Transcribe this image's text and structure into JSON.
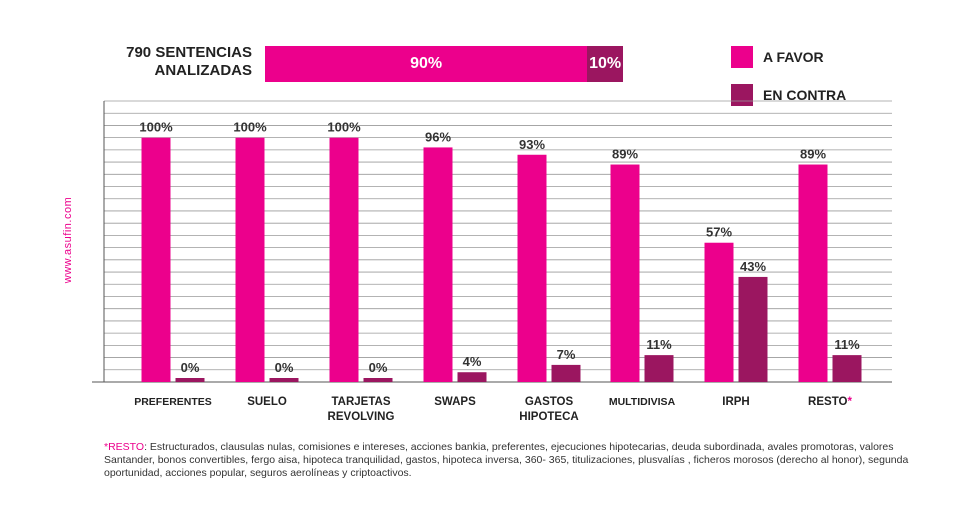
{
  "header": {
    "title_line1": "790 SENTENCIAS",
    "title_line2": "ANALIZADAS",
    "favor_pct": 90,
    "contra_pct": 10,
    "favor_label": "90%",
    "contra_label": "10%"
  },
  "legend": [
    {
      "label": "A FAVOR",
      "color": "#ec008c"
    },
    {
      "label": "EN CONTRA",
      "color": "#9b1660"
    }
  ],
  "watermark": "www.asufin.com",
  "footnote": {
    "mark": "*RESTO",
    "text": ": Estructurados, clausulas nulas, comisiones e intereses, acciones bankia, preferentes, ejecuciones hipotecarias, deuda subordinada, avales promotoras, valores Santander, bonos convertibles, fergo aisa, hipoteca tranquilidad, gastos, hipoteca inversa, 360- 365, titulizaciones, plusvalías , ficheros morosos (derecho al honor), segunda oportunidad, acciones popular, seguros aerolíneas y criptoactivos."
  },
  "chart_data": {
    "type": "bar",
    "title": "",
    "xlabel": "",
    "ylabel": "",
    "ylim": [
      0,
      115
    ],
    "grid": true,
    "categories": [
      [
        "PREFERENTES"
      ],
      [
        "SUELO"
      ],
      [
        "TARJETAS",
        "REVOLVING"
      ],
      [
        "SWAPS"
      ],
      [
        "GASTOS",
        "HIPOTECA"
      ],
      [
        "MULTIDIVISA"
      ],
      [
        "IRPH"
      ],
      [
        "RESTO"
      ]
    ],
    "category_marks": [
      "",
      "",
      "",
      "",
      "",
      "",
      "",
      "*"
    ],
    "series": [
      {
        "name": "A FAVOR",
        "color": "#ec008c",
        "values": [
          100,
          100,
          100,
          96,
          93,
          89,
          57,
          89
        ],
        "labels": [
          "100%",
          "100%",
          "100%",
          "96%",
          "93%",
          "89%",
          "57%",
          "89%"
        ]
      },
      {
        "name": "EN CONTRA",
        "color": "#9b1660",
        "values": [
          0,
          0,
          0,
          4,
          7,
          11,
          43,
          11
        ],
        "labels": [
          "0%",
          "0%",
          "0%",
          "4%",
          "7%",
          "11%",
          "43%",
          "11%"
        ]
      }
    ]
  }
}
